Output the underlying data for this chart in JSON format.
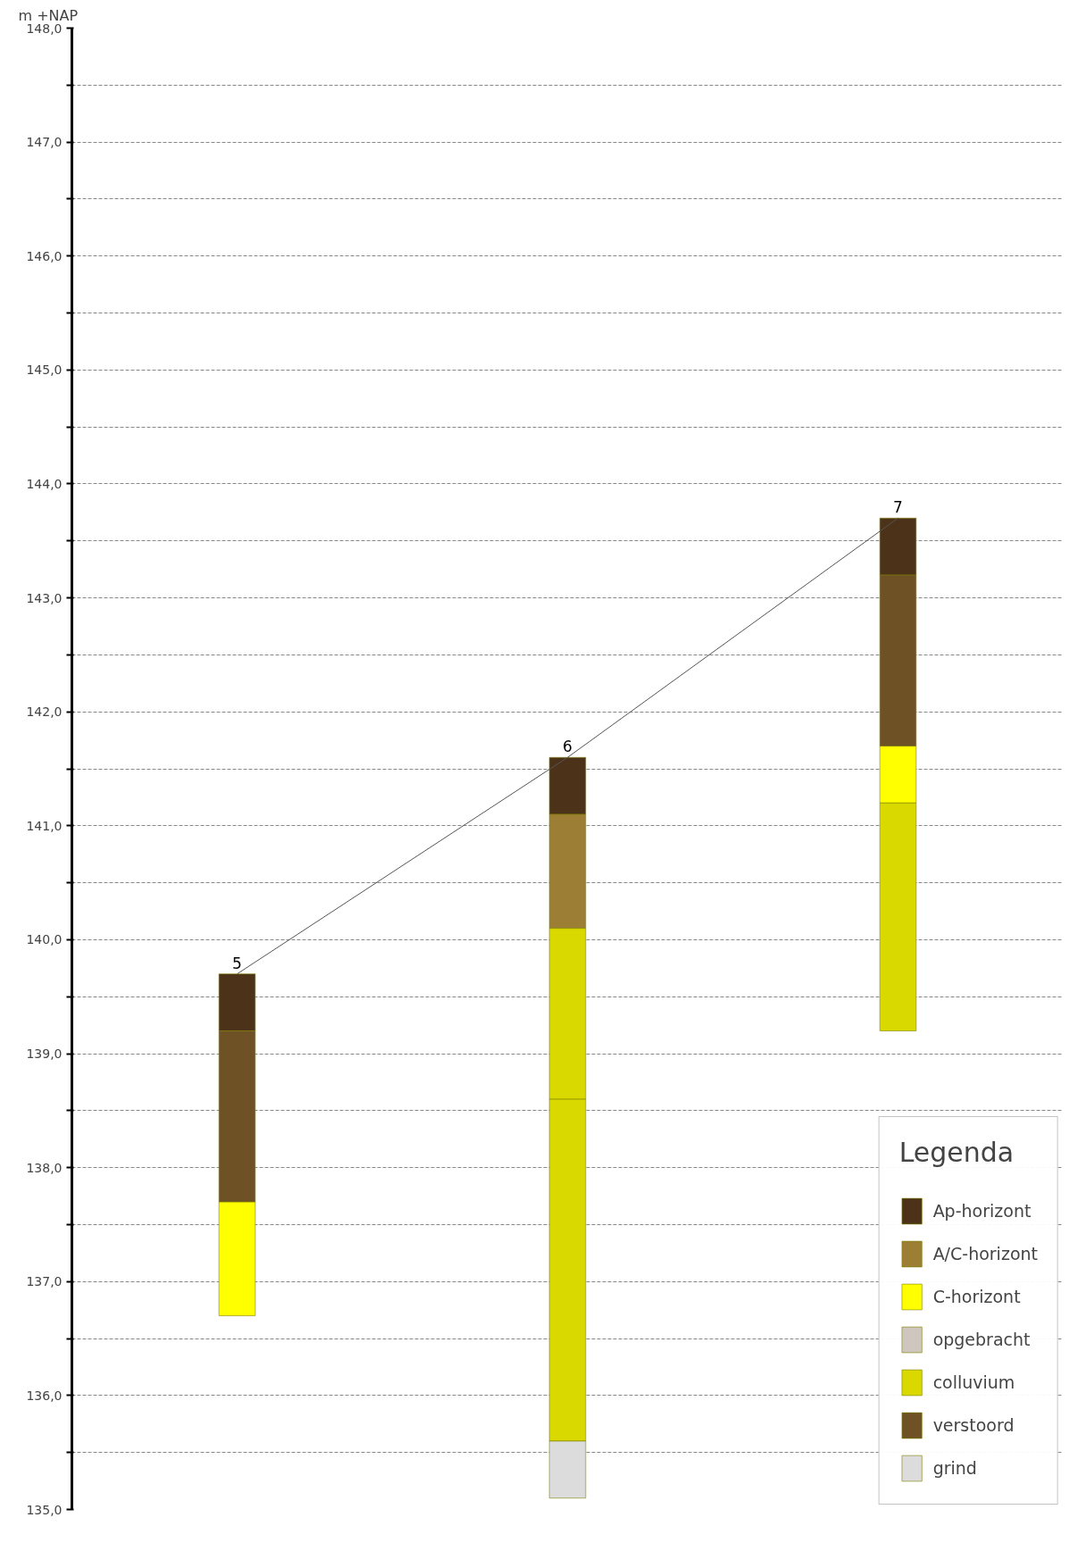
{
  "chart_data": {
    "type": "bar",
    "ylabel": "m +NAP",
    "legend_title": "Legenda",
    "categories": [
      null,
      null,
      null
    ],
    "annotations": [
      {
        "text": "5",
        "y": 139.7
      },
      {
        "text": "6",
        "y": 141.6
      },
      {
        "text": "7",
        "y": 143.7
      }
    ],
    "ylim": [
      135.0,
      148.0
    ],
    "yticks": [
      {
        "value": 135.0,
        "label": "135,0"
      },
      {
        "value": 135.5,
        "label": null
      },
      {
        "value": 136.0,
        "label": "136,0"
      },
      {
        "value": 136.5,
        "label": null
      },
      {
        "value": 137.0,
        "label": "137,0"
      },
      {
        "value": 137.5,
        "label": null
      },
      {
        "value": 138.0,
        "label": "138,0"
      },
      {
        "value": 138.5,
        "label": null
      },
      {
        "value": 139.0,
        "label": "139,0"
      },
      {
        "value": 139.5,
        "label": null
      },
      {
        "value": 140.0,
        "label": "140,0"
      },
      {
        "value": 140.5,
        "label": null
      },
      {
        "value": 141.0,
        "label": "141,0"
      },
      {
        "value": 141.5,
        "label": null
      },
      {
        "value": 142.0,
        "label": "142,0"
      },
      {
        "value": 142.5,
        "label": null
      },
      {
        "value": 143.0,
        "label": "143,0"
      },
      {
        "value": 143.5,
        "label": null
      },
      {
        "value": 144.0,
        "label": "144,0"
      },
      {
        "value": 144.5,
        "label": null
      },
      {
        "value": 145.0,
        "label": "145,0"
      },
      {
        "value": 145.5,
        "label": null
      },
      {
        "value": 146.0,
        "label": "146,0"
      },
      {
        "value": 146.5,
        "label": null
      },
      {
        "value": 147.0,
        "label": "147,0"
      },
      {
        "value": 147.5,
        "label": null
      },
      {
        "value": 148.0,
        "label": "148,0"
      }
    ],
    "grid": "y",
    "legend": "bottom right",
    "series": [
      {
        "name": "Ap-horizont",
        "color": "#4b3219",
        "values": [
          0.5,
          0.5,
          0.5
        ],
        "base": [
          139.2,
          141.1,
          143.2
        ]
      },
      {
        "name": "A/C-horizont",
        "color": "#9c7f35",
        "values": [
          null,
          1.0,
          null
        ],
        "base": [
          null,
          140.1,
          null
        ]
      },
      {
        "name": "C-horizont",
        "color": "#ffff00",
        "values": [
          1.0,
          null,
          0.5
        ],
        "base": [
          136.7,
          null,
          141.2
        ]
      },
      {
        "name": "opgebracht",
        "color": "#cfc6bd",
        "values": [
          null,
          null,
          null
        ],
        "base": [
          null,
          null,
          null
        ]
      },
      {
        "name": "colluvium",
        "color": "#d9d900",
        "values": [
          null,
          1.5,
          2.0
        ],
        "base": [
          null,
          138.6,
          139.2
        ]
      },
      {
        "color": "#d9d900",
        "values": [
          null,
          3.0,
          null
        ],
        "base": [
          null,
          135.6,
          null
        ]
      },
      {
        "name": "verstoord",
        "color": "#6e5225",
        "values": [
          1.5,
          null,
          1.5
        ],
        "base": [
          137.7,
          null,
          141.7
        ]
      },
      {
        "name": "grind",
        "color": "#dcdcdc",
        "values": [
          null,
          0.5,
          null
        ],
        "base": [
          null,
          135.1,
          null
        ]
      },
      {
        "type": "line",
        "color": "#555555",
        "values": [
          139.7,
          141.6,
          143.7
        ]
      }
    ]
  }
}
